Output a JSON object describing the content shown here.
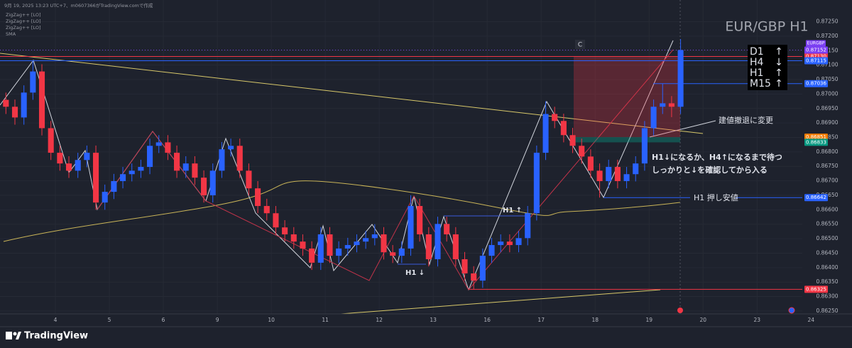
{
  "header": {
    "caption": "9月 19, 2025 13:23 UTC+7、m0607366がTradingView.comで作成",
    "indicators": [
      "ZigZag++ [LO]",
      "ZigZag++ [LO]",
      "ZigZag++ [LO]",
      "SMA"
    ]
  },
  "chart_data": {
    "type": "candlestick",
    "title": "EUR/GBP H1",
    "symbol": "EURGBP",
    "categories": [
      null,
      null,
      null,
      null,
      null,
      null,
      "4",
      null,
      null,
      null,
      null,
      null,
      "5",
      null,
      null,
      null,
      null,
      null,
      "6",
      null,
      null,
      null,
      null,
      null,
      "9",
      null,
      null,
      null,
      null,
      null,
      "10",
      null,
      null,
      null,
      null,
      null,
      "11",
      null,
      null,
      null,
      null,
      null,
      "12",
      null,
      null,
      null,
      null,
      null,
      "13",
      null,
      null,
      null,
      null,
      null,
      "16",
      null,
      null,
      null,
      null,
      null,
      "17",
      null,
      null,
      null,
      null,
      null,
      "18",
      null,
      null,
      null,
      null,
      null,
      "19",
      null,
      null,
      null,
      null,
      null,
      "20",
      null,
      null,
      null,
      null,
      null,
      "23",
      null,
      null,
      null,
      null,
      null,
      "24"
    ],
    "open": [
      0.8698,
      0.86956,
      0.86919,
      0.87005,
      0.87078,
      0.86882,
      0.86797,
      0.8676,
      0.86735,
      0.86772,
      0.86797,
      0.86625,
      0.86662,
      0.86699,
      0.86723,
      0.86735,
      0.86748,
      0.86821,
      0.86833,
      0.86797,
      0.86735,
      0.8676,
      0.86711,
      0.8665,
      0.86735,
      0.86809,
      0.86821,
      0.86735,
      0.86674,
      0.86613,
      0.86588,
      0.86539,
      0.86515,
      0.8649,
      0.86466,
      0.86417,
      0.86515,
      0.86441,
      0.86466,
      0.86478,
      0.8649,
      0.86502,
      0.86515,
      0.86453,
      0.86441,
      0.86466,
      0.86613,
      0.86515,
      0.86429,
      0.86551,
      0.86515,
      0.86429,
      0.8638,
      0.86355,
      0.86441,
      0.86478,
      0.8649,
      0.86478,
      0.86502,
      0.86588,
      0.86797,
      0.86931,
      0.86907,
      0.86858,
      0.86821,
      0.86784,
      0.86735,
      0.86699,
      0.86748,
      0.86699,
      0.86723,
      0.8676,
      0.86882,
      0.86956,
      0.86968,
      0.86956,
      null,
      null,
      null,
      null,
      null,
      null,
      null,
      null,
      null,
      null,
      null,
      null,
      null,
      null,
      null
    ],
    "high": [
      0.87005,
      0.86981,
      0.8703,
      0.87115,
      0.87103,
      0.86907,
      0.86822,
      0.86785,
      0.86797,
      0.86822,
      0.86822,
      0.86687,
      0.86724,
      0.86748,
      0.8676,
      0.86773,
      0.86846,
      0.86858,
      0.86858,
      0.86822,
      0.86785,
      0.86785,
      0.86736,
      0.8676,
      0.86834,
      0.86846,
      0.86846,
      0.8676,
      0.86699,
      0.86638,
      0.86613,
      0.86564,
      0.8654,
      0.86515,
      0.86491,
      0.8654,
      0.8654,
      0.86491,
      0.86503,
      0.86515,
      0.86527,
      0.8655,
      0.8654,
      0.86478,
      0.86491,
      0.8665,
      0.86638,
      0.8654,
      0.86576,
      0.86576,
      0.8654,
      0.86454,
      0.86405,
      0.86466,
      0.86503,
      0.86515,
      0.86515,
      0.86527,
      0.86613,
      0.86822,
      0.86975,
      0.86956,
      0.86932,
      0.86883,
      0.86846,
      0.86809,
      0.8676,
      0.86773,
      0.86773,
      0.86748,
      0.86785,
      0.86907,
      0.86981,
      0.87036,
      0.86993,
      0.8719,
      null,
      null,
      null,
      null,
      null,
      null,
      null,
      null,
      null,
      null,
      null,
      null,
      null,
      null,
      null
    ],
    "low": [
      0.86931,
      0.86894,
      0.86894,
      0.8698,
      0.86857,
      0.86772,
      0.86735,
      0.8671,
      0.8671,
      0.86747,
      0.866,
      0.866,
      0.86637,
      0.86674,
      0.86698,
      0.8671,
      0.86723,
      0.86796,
      0.86772,
      0.8671,
      0.8671,
      0.86686,
      0.86625,
      0.86625,
      0.8671,
      0.86784,
      0.8671,
      0.86649,
      0.86588,
      0.86563,
      0.86514,
      0.8649,
      0.86465,
      0.86441,
      0.86392,
      0.86392,
      0.86416,
      0.86416,
      0.86441,
      0.86453,
      0.86465,
      0.86477,
      0.86428,
      0.86416,
      0.86416,
      0.86441,
      0.8649,
      0.86404,
      0.86404,
      0.8649,
      0.86404,
      0.86355,
      0.86325,
      0.8633,
      0.86416,
      0.86453,
      0.86453,
      0.86453,
      0.86477,
      0.86563,
      0.86772,
      0.86882,
      0.86833,
      0.86796,
      0.86759,
      0.8671,
      0.86642,
      0.86674,
      0.86674,
      0.86674,
      0.86698,
      0.86735,
      0.86857,
      0.86931,
      0.8692,
      0.86931,
      null,
      null,
      null,
      null,
      null,
      null,
      null,
      null,
      null,
      null,
      null,
      null,
      null,
      null,
      null
    ],
    "close": [
      0.86956,
      0.86919,
      0.87005,
      0.87078,
      0.86882,
      0.86797,
      0.8676,
      0.86735,
      0.86772,
      0.86797,
      0.86625,
      0.86662,
      0.86699,
      0.86723,
      0.86735,
      0.86748,
      0.86821,
      0.86833,
      0.86797,
      0.86735,
      0.8676,
      0.86711,
      0.8665,
      0.86735,
      0.86809,
      0.86821,
      0.86735,
      0.86674,
      0.86613,
      0.86588,
      0.86539,
      0.86515,
      0.8649,
      0.86466,
      0.86417,
      0.86515,
      0.86441,
      0.86466,
      0.86478,
      0.8649,
      0.86502,
      0.86515,
      0.86453,
      0.86441,
      0.86466,
      0.86613,
      0.86515,
      0.86429,
      0.86551,
      0.86515,
      0.86429,
      0.8638,
      0.86355,
      0.86441,
      0.86478,
      0.8649,
      0.86478,
      0.86502,
      0.86588,
      0.86797,
      0.86931,
      0.86907,
      0.86858,
      0.86821,
      0.86784,
      0.86735,
      0.86699,
      0.86748,
      0.86699,
      0.86723,
      0.8676,
      0.86882,
      0.86956,
      0.86968,
      0.86956,
      0.87152,
      null,
      null,
      null,
      null,
      null,
      null,
      null,
      null,
      null,
      null,
      null,
      null,
      null,
      null,
      null
    ],
    "up_color": "#2962ff",
    "down_color": "#f23645",
    "ylim": [
      0.8624,
      0.87325
    ],
    "yticks": [
      {
        "value": 0.8625,
        "label": "0.86250"
      },
      {
        "value": 0.863,
        "label": "0.86300"
      },
      {
        "value": 0.8635,
        "label": "0.86350"
      },
      {
        "value": 0.864,
        "label": "0.86400"
      },
      {
        "value": 0.8645,
        "label": "0.86450"
      },
      {
        "value": 0.865,
        "label": "0.86500"
      },
      {
        "value": 0.8655,
        "label": "0.86550"
      },
      {
        "value": 0.866,
        "label": "0.86600"
      },
      {
        "value": 0.8665,
        "label": "0.86650"
      },
      {
        "value": 0.867,
        "label": "0.86700"
      },
      {
        "value": 0.8675,
        "label": "0.86750"
      },
      {
        "value": 0.868,
        "label": "0.86800"
      },
      {
        "value": 0.8685,
        "label": "0.86850"
      },
      {
        "value": 0.869,
        "label": "0.86900"
      },
      {
        "value": 0.8695,
        "label": "0.86950"
      },
      {
        "value": 0.87,
        "label": "0.87000"
      },
      {
        "value": 0.8705,
        "label": "0.87050"
      },
      {
        "value": 0.871,
        "label": "0.87100"
      },
      {
        "value": 0.8715,
        "label": "0.87150"
      },
      {
        "value": 0.872,
        "label": "0.87200"
      },
      {
        "value": 0.8725,
        "label": "0.87250"
      }
    ],
    "grid": true,
    "last_price": {
      "value": 0.87152,
      "label": "0.87152",
      "color": "#7b3ff2"
    },
    "price_lines": [
      {
        "value": 0.8713,
        "label": "0.87130",
        "color": "#f23645"
      },
      {
        "value": 0.87115,
        "label": "0.87115",
        "color": "#2962ff"
      },
      {
        "value": 0.87036,
        "label": "0.87036",
        "color": "#2962ff"
      },
      {
        "value": 0.86851,
        "label": "0.86851",
        "color": "#f57c00"
      },
      {
        "value": 0.86833,
        "label": "0.86833",
        "color": "#089981"
      },
      {
        "value": 0.86642,
        "label": "0.86642",
        "color": "#2962ff"
      },
      {
        "value": 0.86325,
        "label": "0.86325",
        "color": "#f23645"
      }
    ],
    "timeframes": [
      {
        "name": "D1",
        "arrow": "↑"
      },
      {
        "name": "H4",
        "arrow": "↓"
      },
      {
        "name": "H1",
        "arrow": "↑"
      },
      {
        "name": "M15",
        "arrow": "↑"
      }
    ],
    "marker": "C",
    "annotations": [
      "建値撤退に変更",
      "H1↓になるか、H4↑になるまで待つ",
      "しっかりと↓を確認してから入る",
      "H1 押し安値",
      "H1 ↑",
      "H1 ↓"
    ]
  },
  "footer": {
    "logo": "TradingView"
  }
}
